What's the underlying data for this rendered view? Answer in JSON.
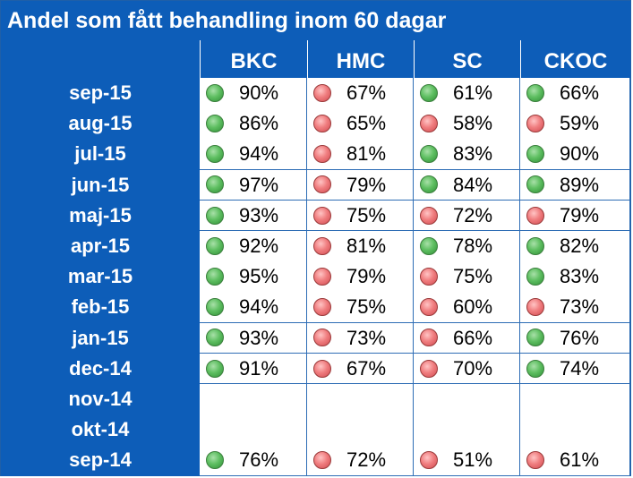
{
  "chart_data": {
    "type": "table",
    "title": "Andel som fått behandling inom 60 dagar",
    "columns": [
      "BKC",
      "HMC",
      "SC",
      "CKOC"
    ],
    "rows": [
      {
        "label": "sep-15",
        "values": [
          "90%",
          "67%",
          "61%",
          "66%"
        ],
        "status": [
          "green",
          "red",
          "green",
          "green"
        ]
      },
      {
        "label": "aug-15",
        "values": [
          "86%",
          "65%",
          "58%",
          "59%"
        ],
        "status": [
          "green",
          "red",
          "red",
          "red"
        ]
      },
      {
        "label": "jul-15",
        "values": [
          "94%",
          "81%",
          "83%",
          "90%"
        ],
        "status": [
          "green",
          "red",
          "green",
          "green"
        ]
      },
      {
        "label": "jun-15",
        "values": [
          "97%",
          "79%",
          "84%",
          "89%"
        ],
        "status": [
          "green",
          "red",
          "green",
          "green"
        ]
      },
      {
        "label": "maj-15",
        "values": [
          "93%",
          "75%",
          "72%",
          "79%"
        ],
        "status": [
          "green",
          "red",
          "red",
          "red"
        ]
      },
      {
        "label": "apr-15",
        "values": [
          "92%",
          "81%",
          "78%",
          "82%"
        ],
        "status": [
          "green",
          "red",
          "green",
          "green"
        ]
      },
      {
        "label": "mar-15",
        "values": [
          "95%",
          "79%",
          "75%",
          "83%"
        ],
        "status": [
          "green",
          "red",
          "red",
          "green"
        ]
      },
      {
        "label": "feb-15",
        "values": [
          "94%",
          "75%",
          "60%",
          "73%"
        ],
        "status": [
          "green",
          "red",
          "red",
          "red"
        ]
      },
      {
        "label": "jan-15",
        "values": [
          "93%",
          "73%",
          "66%",
          "76%"
        ],
        "status": [
          "green",
          "red",
          "red",
          "green"
        ]
      },
      {
        "label": "dec-14",
        "values": [
          "91%",
          "67%",
          "70%",
          "74%"
        ],
        "status": [
          "green",
          "red",
          "red",
          "green"
        ]
      },
      {
        "label": "nov-14",
        "values": [
          "",
          "",
          "",
          ""
        ],
        "status": [
          "",
          "",
          "",
          ""
        ]
      },
      {
        "label": "okt-14",
        "values": [
          "",
          "",
          "",
          ""
        ],
        "status": [
          "",
          "",
          "",
          ""
        ]
      },
      {
        "label": "sep-14",
        "values": [
          "76%",
          "72%",
          "51%",
          "61%"
        ],
        "status": [
          "green",
          "red",
          "red",
          "red"
        ]
      }
    ]
  },
  "colors": {
    "header_bg": "#0d5db8",
    "grid_line": "#2e6db5",
    "green": "#5fbf62",
    "red": "#f07e80"
  }
}
